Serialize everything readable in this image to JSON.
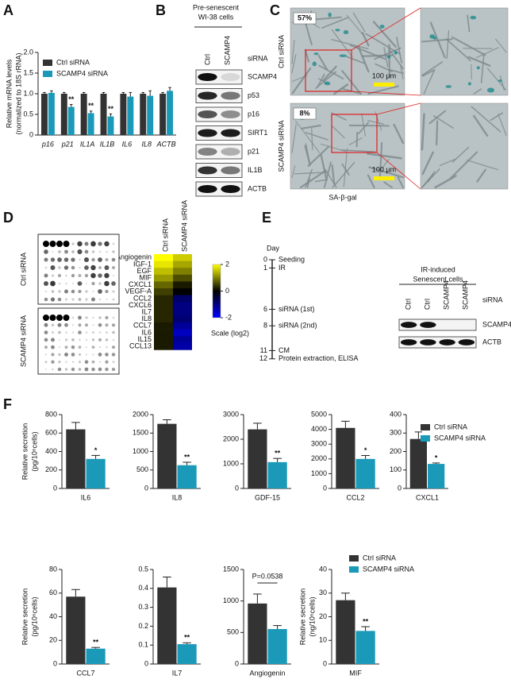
{
  "labels": [
    "A",
    "B",
    "C",
    "D",
    "E",
    "F"
  ],
  "chart_data": [
    {
      "type": "bar",
      "ylabel": [
        "Relative mRNA levels",
        "(normalized to 18S rRNA)"
      ],
      "categories": [
        "p16",
        "p21",
        "IL1A",
        "IL1B",
        "IL6",
        "IL8",
        "ACTB"
      ],
      "series": [
        {
          "name": "Ctrl siRNA",
          "color": "#333333",
          "values": [
            1,
            1,
            1,
            1,
            1,
            1,
            1
          ],
          "errors": [
            0.03,
            0.03,
            0.03,
            0.03,
            0.03,
            0.03,
            0.03
          ]
        },
        {
          "name": "SCAMP4 siRNA",
          "color": "#1a9ab8",
          "values": [
            1.02,
            0.68,
            0.53,
            0.45,
            0.93,
            0.95,
            1.07
          ],
          "errors": [
            0.05,
            0.06,
            0.05,
            0.06,
            0.1,
            0.12,
            0.08
          ],
          "sig": [
            null,
            "**",
            "**",
            "**",
            null,
            null,
            null
          ]
        }
      ],
      "ylim": [
        0,
        2
      ],
      "yticks": [
        0,
        0.5,
        {
          "value": 1,
          "label": "1.0"
        },
        1.5,
        {
          "value": 2,
          "label": "2.0"
        }
      ]
    },
    {
      "type": "heatmap",
      "columns": [
        "Ctrl siRNA",
        "SCAMP4 siRNA"
      ],
      "rows": [
        "Angiogenin",
        "IGF-1",
        "EGF",
        "MIF",
        "CXCL1",
        "VEGF-A",
        "CCL2",
        "CXCL6",
        "IL7",
        "IL8",
        "CCL7",
        "IL6",
        "IL15",
        "CCL13"
      ],
      "values": [
        [
          2,
          1.6
        ],
        [
          1.8,
          1.3
        ],
        [
          1.5,
          1.0
        ],
        [
          1.2,
          0.6
        ],
        [
          0.8,
          0.2
        ],
        [
          0.5,
          0
        ],
        [
          0.3,
          -0.8
        ],
        [
          0.3,
          -1
        ],
        [
          0.3,
          -1
        ],
        [
          0.3,
          -0.9
        ],
        [
          0.2,
          -1.2
        ],
        [
          0.2,
          -1.5
        ],
        [
          0.2,
          -1.2
        ],
        [
          0.2,
          -1.3
        ]
      ],
      "clim": [
        -2,
        2
      ],
      "cticks": [
        2,
        0,
        -2
      ],
      "clabel": "Scale (log2)"
    },
    {
      "type": "bar",
      "ylabel": [
        "Relative secretion",
        "(pg/10⁶cells)"
      ],
      "categories": [
        "IL6"
      ],
      "series": [
        {
          "color": "#333333",
          "values": [
            640
          ],
          "errors": [
            75
          ]
        },
        {
          "color": "#1a9ab8",
          "values": [
            320
          ],
          "errors": [
            38
          ],
          "sig": [
            "*"
          ]
        }
      ],
      "ylim": [
        0,
        800
      ],
      "yticks": [
        0,
        200,
        400,
        600,
        800
      ]
    },
    {
      "type": "bar",
      "categories": [
        "IL8"
      ],
      "series": [
        {
          "color": "#333333",
          "values": [
            1750
          ],
          "errors": [
            110
          ]
        },
        {
          "color": "#1a9ab8",
          "values": [
            630
          ],
          "errors": [
            80
          ],
          "sig": [
            "**"
          ]
        }
      ],
      "ylim": [
        0,
        2000
      ],
      "yticks": [
        0,
        500,
        1000,
        1500,
        2000
      ]
    },
    {
      "type": "bar",
      "categories": [
        "GDF-15"
      ],
      "series": [
        {
          "color": "#333333",
          "values": [
            2400
          ],
          "errors": [
            250
          ]
        },
        {
          "color": "#1a9ab8",
          "values": [
            1070
          ],
          "errors": [
            150
          ],
          "sig": [
            "**"
          ]
        }
      ],
      "ylim": [
        0,
        3000
      ],
      "yticks": [
        0,
        1000,
        2000,
        3000
      ]
    },
    {
      "type": "bar",
      "categories": [
        "CCL2"
      ],
      "series": [
        {
          "color": "#333333",
          "values": [
            4100
          ],
          "errors": [
            450
          ]
        },
        {
          "color": "#1a9ab8",
          "values": [
            2000
          ],
          "errors": [
            230
          ],
          "sig": [
            "*"
          ]
        }
      ],
      "ylim": [
        0,
        5000
      ],
      "yticks": [
        0,
        1000,
        2000,
        3000,
        4000,
        5000
      ]
    },
    {
      "type": "bar",
      "categories": [
        "CXCL1"
      ],
      "series": [
        {
          "name": "Ctrl siRNA",
          "color": "#333333",
          "values": [
            268
          ],
          "errors": [
            38
          ]
        },
        {
          "name": "SCAMP4 siRNA",
          "color": "#1a9ab8",
          "values": [
            133
          ],
          "errors": [
            5
          ],
          "sig": [
            "*"
          ]
        }
      ],
      "ylim": [
        0,
        400
      ],
      "yticks": [
        0,
        100,
        200,
        300,
        400
      ]
    },
    {
      "type": "bar",
      "ylabel": [
        "Relative secretion",
        "(pg/10⁶cells)"
      ],
      "categories": [
        "CCL7"
      ],
      "series": [
        {
          "color": "#333333",
          "values": [
            57
          ],
          "errors": [
            6
          ]
        },
        {
          "color": "#1a9ab8",
          "values": [
            13
          ],
          "errors": [
            1
          ],
          "sig": [
            "**"
          ]
        }
      ],
      "ylim": [
        0,
        80
      ],
      "yticks": [
        0,
        20,
        40,
        60,
        80
      ]
    },
    {
      "type": "bar",
      "categories": [
        "IL7"
      ],
      "series": [
        {
          "color": "#333333",
          "values": [
            0.405
          ],
          "errors": [
            0.055
          ]
        },
        {
          "color": "#1a9ab8",
          "values": [
            0.105
          ],
          "errors": [
            0.007
          ],
          "sig": [
            "**"
          ]
        }
      ],
      "ylim": [
        0,
        0.5
      ],
      "yticks": [
        0,
        0.1,
        0.2,
        0.3,
        0.4,
        0.5
      ]
    },
    {
      "type": "bar",
      "categories": [
        "Angiogenin"
      ],
      "annotation": "P=0.0538",
      "series": [
        {
          "color": "#333333",
          "values": [
            960
          ],
          "errors": [
            150
          ]
        },
        {
          "color": "#1a9ab8",
          "values": [
            555
          ],
          "errors": [
            55
          ]
        }
      ],
      "ylim": [
        0,
        1500
      ],
      "yticks": [
        0,
        500,
        1000,
        1500
      ]
    },
    {
      "type": "bar",
      "ylabel": [
        "Relative secretion",
        "(ng/10⁶cells)"
      ],
      "categories": [
        "MIF"
      ],
      "series": [
        {
          "name": "Ctrl siRNA",
          "color": "#333333",
          "values": [
            27
          ],
          "errors": [
            3
          ]
        },
        {
          "name": "SCAMP4 siRNA",
          "color": "#1a9ab8",
          "values": [
            14
          ],
          "errors": [
            1.8
          ],
          "sig": [
            "**"
          ]
        }
      ],
      "ylim": [
        0,
        40
      ],
      "yticks": [
        0,
        10,
        20,
        30,
        40
      ]
    }
  ],
  "blot_b": {
    "title": [
      "Pre-senescent",
      "WI-38 cells"
    ],
    "lanes": [
      "Ctrl",
      "SCAMP4"
    ],
    "lane_header": "siRNA",
    "rows": [
      "SCAMP4",
      "p53",
      "p16",
      "SIRT1",
      "p21",
      "IL1B",
      "ACTB"
    ]
  },
  "images": {
    "rows": [
      {
        "label": "Ctrl siRNA",
        "percent": "57%",
        "scale": "100 µm"
      },
      {
        "label": "SCAMP4 siRNA",
        "percent": "8%",
        "scale": "100 µm"
      }
    ],
    "caption": "SA-β-gal"
  },
  "arrays": [
    "Ctrl siRNA",
    "SCAMP4 siRNA"
  ],
  "timeline": {
    "title": "Day",
    "steps": [
      {
        "day": 0,
        "label": "Seeding"
      },
      {
        "day": 1,
        "label": "IR"
      },
      {
        "day": 6,
        "label": "siRNA (1st)"
      },
      {
        "day": 8,
        "label": "siRNA (2nd)"
      },
      {
        "day": 11,
        "label": "CM"
      },
      {
        "day": 12,
        "label": "Protein extraction, ELISA"
      }
    ]
  },
  "blot_e": {
    "title": [
      "IR-induced",
      "Senescent cells"
    ],
    "lanes": [
      "Ctrl",
      "Ctrl",
      "SCAMP4",
      "SCAMP4"
    ],
    "lane_header": "siRNA",
    "rows": [
      "SCAMP4",
      "ACTB"
    ]
  }
}
